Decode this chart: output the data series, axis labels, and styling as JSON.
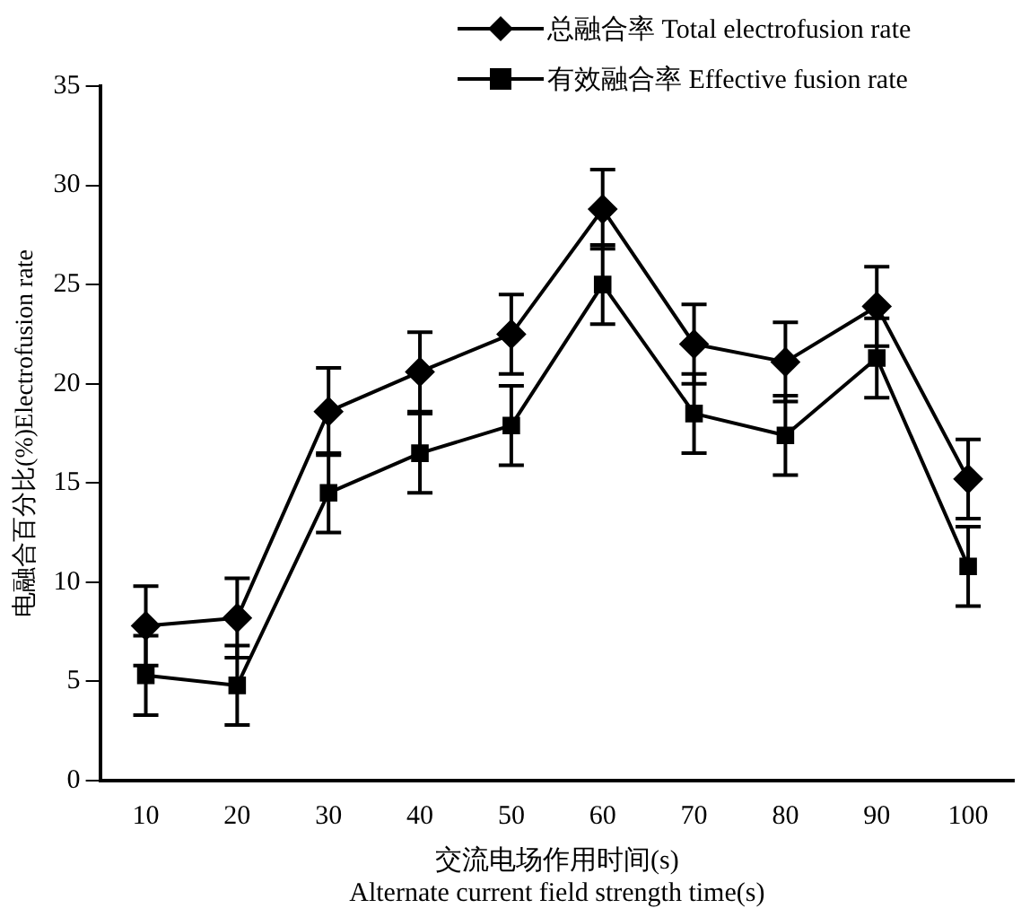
{
  "chart_data": {
    "type": "line",
    "xlabel": "交流电场作用时间(s)\nAlternate current field strength time(s)",
    "ylabel": "电融合百分比(%)Electrofusion rate",
    "categories": [
      "10",
      "20",
      "30",
      "40",
      "50",
      "60",
      "70",
      "80",
      "90",
      "100"
    ],
    "series": [
      {
        "name": "总融合率 Total electrofusion rate",
        "color": "#000000",
        "marker": "diamond",
        "values": [
          7.8,
          8.2,
          18.6,
          20.6,
          22.5,
          28.8,
          22.0,
          21.1,
          23.9,
          15.2
        ],
        "errors": [
          2,
          2,
          2.2,
          2,
          2,
          2,
          2,
          2,
          2,
          2
        ]
      },
      {
        "name": "有效融合率 Effective fusion rate",
        "color": "#000000",
        "marker": "square",
        "values": [
          5.3,
          4.8,
          14.5,
          16.5,
          17.9,
          25.0,
          18.5,
          17.4,
          21.3,
          10.8
        ],
        "errors": [
          2,
          2,
          2,
          2,
          2,
          2,
          2,
          2,
          2,
          2
        ]
      }
    ],
    "ylim": [
      0,
      35
    ],
    "yticks": [
      0,
      5,
      10,
      15,
      20,
      25,
      30,
      35
    ],
    "grid": false,
    "legend": "top",
    "line_style": "solid"
  }
}
